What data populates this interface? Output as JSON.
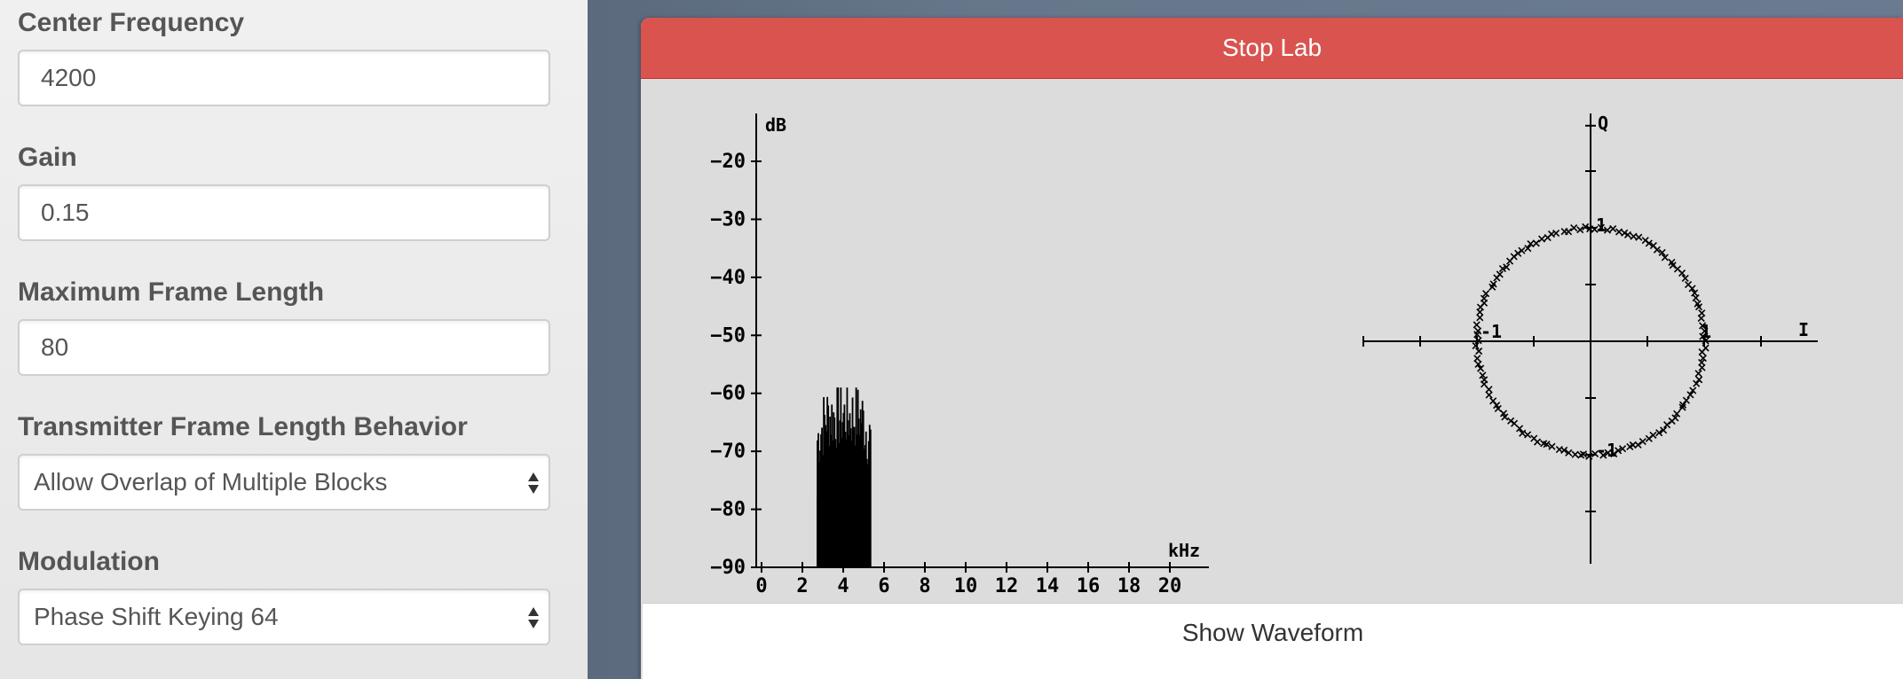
{
  "settings": {
    "center_frequency": {
      "label": "Center Frequency",
      "value": "4200"
    },
    "gain": {
      "label": "Gain",
      "value": "0.15"
    },
    "max_frame_length": {
      "label": "Maximum Frame Length",
      "value": "80"
    },
    "frame_behavior": {
      "label": "Transmitter Frame Length Behavior",
      "value": "Allow Overlap of Multiple Blocks"
    },
    "modulation": {
      "label": "Modulation",
      "value": "Phase Shift Keying 64"
    }
  },
  "lab": {
    "stop_label": "Stop Lab",
    "show_waveform_label": "Show Waveform",
    "colors": {
      "stop": "#d9534f",
      "panel": "#dcdcdc"
    }
  },
  "chart_data": [
    {
      "type": "area",
      "xlabel": "kHz",
      "ylabel": "dB",
      "xlim": [
        0,
        21
      ],
      "ylim": [
        -90,
        -15
      ],
      "xticks": [
        0,
        2,
        4,
        6,
        8,
        10,
        12,
        14,
        16,
        18,
        20
      ],
      "yticks": [
        -20,
        -30,
        -40,
        -50,
        -60,
        -70,
        -80,
        -90
      ],
      "band": {
        "x_start": 2.7,
        "x_end": 5.3,
        "peak_db": -59,
        "floor_db": -90
      }
    },
    {
      "type": "scatter",
      "xlabel": "I",
      "ylabel": "Q",
      "xlim": [
        -2,
        2
      ],
      "ylim": [
        -2,
        2
      ],
      "tick_labels": [
        "1",
        "-1",
        "1",
        "-1"
      ],
      "marker": "x",
      "radius": 1,
      "points_count": 64
    }
  ]
}
